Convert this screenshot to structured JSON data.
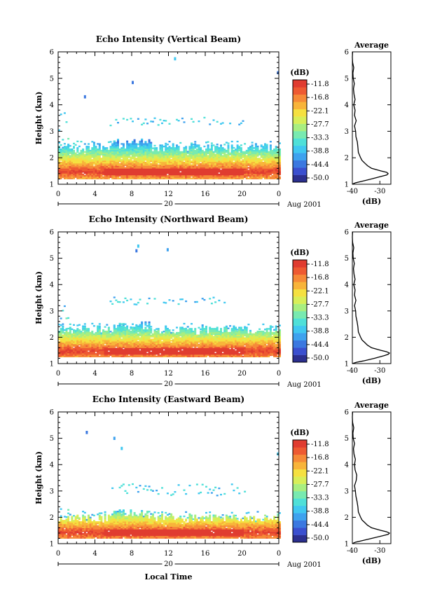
{
  "colors": {
    "colorbar": [
      "#2b2f8f",
      "#3a4fcf",
      "#3b78e0",
      "#3ea2ee",
      "#40c8f0",
      "#4fe0d8",
      "#78eab0",
      "#a8ee80",
      "#d8ee58",
      "#f5e040",
      "#f8b43a",
      "#f68a38",
      "#ee5a32",
      "#e03c30"
    ],
    "profile_line": "#000000",
    "axis": "#000000"
  },
  "chart_data": [
    {
      "type": "heatmap",
      "title": "Echo Intensity (Vertical Beam)",
      "ylabel": "Height (km)",
      "xlim": [
        0,
        24
      ],
      "ylim": [
        1,
        6
      ],
      "x_ticks": [
        "0",
        "4",
        "8",
        "12",
        "16",
        "20",
        "0"
      ],
      "y_ticks": [
        "1",
        "2",
        "3",
        "4",
        "5",
        "6"
      ],
      "date_bar_label": "20",
      "date_label": "Aug 2001",
      "colorbar_unit": "(dB)",
      "colorbar_ticks": [
        "-11.8",
        "-16.8",
        "-22.1",
        "-27.7",
        "-33.3",
        "-38.8",
        "-44.4",
        "-50.0"
      ],
      "layers": [
        {
          "name": "surface-layer",
          "from": 0,
          "to": 24,
          "bottom": 1.2,
          "top": 2.3,
          "peak_height": 1.45,
          "peak_db": -10,
          "noise_top": 2.6
        },
        {
          "name": "elevated-layer",
          "from": 5.5,
          "to": 20,
          "bottom": 3.2,
          "top": 3.55
        },
        {
          "name": "upper-left-patch",
          "from": 0,
          "to": 1,
          "bottom": 2.5,
          "top": 3.8
        }
      ],
      "profile": {
        "title": "Average",
        "xlabel": "(dB)",
        "x_ticks": [
          "-40",
          "-30"
        ],
        "xlim": [
          -40,
          -26
        ],
        "heights": [
          1.0,
          1.05,
          1.1,
          1.2,
          1.3,
          1.35,
          1.4,
          1.45,
          1.5,
          1.6,
          1.7,
          1.8,
          1.9,
          2.0,
          2.2,
          2.4,
          2.6,
          2.8,
          3.0,
          3.2,
          3.4,
          3.6,
          3.8,
          4.0,
          4.2,
          4.4,
          4.6,
          4.8,
          5.0,
          5.2,
          5.4,
          5.6,
          5.8,
          6.0
        ],
        "values": [
          -40,
          -39,
          -37,
          -33,
          -29.5,
          -27.5,
          -27,
          -27.5,
          -29.5,
          -33,
          -34.5,
          -35.5,
          -36.5,
          -37,
          -37.8,
          -38,
          -38.2,
          -38.7,
          -38.8,
          -39.2,
          -38.6,
          -39.2,
          -39,
          -39.5,
          -39,
          -39.4,
          -39.6,
          -39.3,
          -39.7,
          -39.8,
          -39.5,
          -39.9,
          -40,
          -39.9
        ]
      }
    },
    {
      "type": "heatmap",
      "title": "Echo Intensity (Northward Beam)",
      "ylabel": "Height (km)",
      "xlim": [
        0,
        24
      ],
      "ylim": [
        1,
        6
      ],
      "x_ticks": [
        "0",
        "4",
        "8",
        "12",
        "16",
        "20",
        "0"
      ],
      "y_ticks": [
        "1",
        "2",
        "3",
        "4",
        "5",
        "6"
      ],
      "date_bar_label": "20",
      "date_label": "Aug 2001",
      "colorbar_unit": "(dB)",
      "colorbar_ticks": [
        "-11.8",
        "-16.8",
        "-22.1",
        "-27.7",
        "-33.3",
        "-38.8",
        "-44.4",
        "-50.0"
      ],
      "layers": [
        {
          "name": "surface-layer",
          "from": 0,
          "to": 24,
          "bottom": 1.25,
          "top": 2.2,
          "peak_height": 1.45,
          "peak_db": -10,
          "noise_top": 2.5
        },
        {
          "name": "elevated-layer",
          "from": 5.5,
          "to": 18,
          "bottom": 3.2,
          "top": 3.55
        },
        {
          "name": "upper-left-patch",
          "from": 0,
          "to": 1,
          "bottom": 2.5,
          "top": 3.5
        }
      ],
      "profile": {
        "title": "Average",
        "xlabel": "(dB)",
        "x_ticks": [
          "-40",
          "-30"
        ],
        "xlim": [
          -40,
          -26
        ],
        "heights": [
          1.0,
          1.05,
          1.1,
          1.2,
          1.3,
          1.35,
          1.4,
          1.45,
          1.5,
          1.6,
          1.7,
          1.8,
          1.9,
          2.0,
          2.2,
          2.4,
          2.6,
          2.8,
          3.0,
          3.2,
          3.4,
          3.6,
          3.8,
          4.0,
          4.2,
          4.4,
          4.6,
          4.8,
          5.0,
          5.2,
          5.4,
          5.6,
          5.8,
          6.0
        ],
        "values": [
          -40,
          -38.5,
          -36,
          -32,
          -28.5,
          -27,
          -26.5,
          -27.5,
          -29.5,
          -33,
          -34.5,
          -35.5,
          -36.5,
          -37,
          -37.8,
          -38,
          -38.3,
          -38.7,
          -38.8,
          -39.2,
          -38.7,
          -39.2,
          -39,
          -39.5,
          -39,
          -39.4,
          -39.6,
          -39.3,
          -39.7,
          -39.8,
          -39.5,
          -39.9,
          -40,
          -39.9
        ]
      }
    },
    {
      "type": "heatmap",
      "title": "Echo Intensity (Eastward Beam)",
      "ylabel": "Height (km)",
      "xlabel": "Local Time",
      "xlim": [
        0,
        24
      ],
      "ylim": [
        1,
        6
      ],
      "x_ticks": [
        "0",
        "4",
        "8",
        "12",
        "16",
        "20",
        "0"
      ],
      "y_ticks": [
        "1",
        "2",
        "3",
        "4",
        "5",
        "6"
      ],
      "date_bar_label": "20",
      "date_label": "Aug 2001",
      "colorbar_unit": "(dB)",
      "colorbar_ticks": [
        "-11.8",
        "-16.8",
        "-22.1",
        "-27.7",
        "-33.3",
        "-38.8",
        "-44.4",
        "-50.0"
      ],
      "layers": [
        {
          "name": "surface-layer",
          "from": 0,
          "to": 24,
          "bottom": 1.2,
          "top": 1.9,
          "peak_height": 1.4,
          "peak_db": -10,
          "noise_top": 2.2
        },
        {
          "name": "elevated-layer",
          "from": 5.5,
          "to": 21,
          "bottom": 2.8,
          "top": 3.3
        },
        {
          "name": "upper-left-patch",
          "from": 0,
          "to": 1.2,
          "bottom": 2.2,
          "top": 2.6
        }
      ],
      "profile": {
        "title": "Average",
        "xlabel": "(dB)",
        "x_ticks": [
          "-40",
          "-30"
        ],
        "xlim": [
          -40,
          -26
        ],
        "heights": [
          1.0,
          1.05,
          1.1,
          1.2,
          1.3,
          1.35,
          1.4,
          1.45,
          1.5,
          1.6,
          1.7,
          1.8,
          1.9,
          2.0,
          2.2,
          2.4,
          2.6,
          2.8,
          3.0,
          3.2,
          3.4,
          3.6,
          3.8,
          4.0,
          4.2,
          4.4,
          4.6,
          4.8,
          5.0,
          5.2,
          5.4,
          5.6,
          5.8,
          6.0
        ],
        "values": [
          -40,
          -39,
          -37,
          -33,
          -29,
          -27,
          -26.5,
          -27.5,
          -29.5,
          -33,
          -34.5,
          -35.5,
          -36.5,
          -37,
          -37.8,
          -38,
          -38.3,
          -38.7,
          -38.9,
          -39.2,
          -38.6,
          -38.4,
          -39,
          -39.2,
          -38.9,
          -39.4,
          -39.6,
          -39.2,
          -39.7,
          -39.8,
          -39.5,
          -39.9,
          -40,
          -39.9
        ]
      }
    }
  ]
}
